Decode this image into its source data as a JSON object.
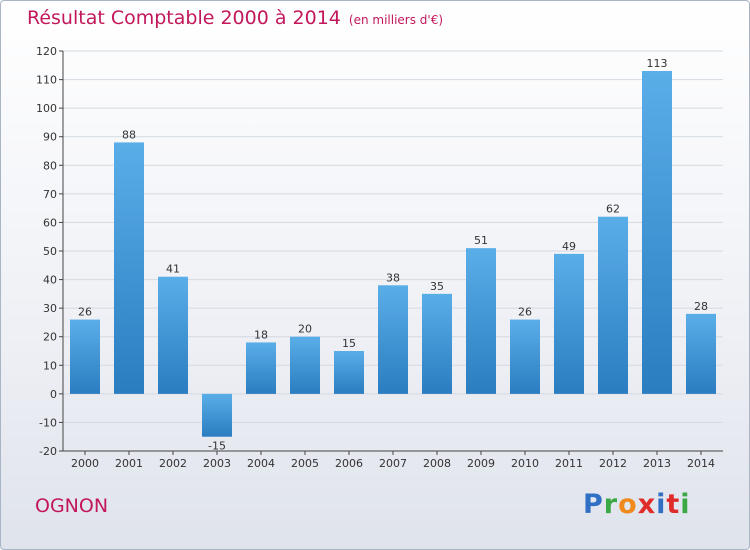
{
  "title": "Résultat Comptable 2000 à 2014",
  "unit": "(en milliers d'€)",
  "commune": "OGNON",
  "logo": {
    "letters": [
      "P",
      "r",
      "o",
      "x",
      "i",
      "t",
      "i"
    ],
    "colors": [
      "#2f6fc4",
      "#39a845",
      "#f08a1d",
      "#e02b2b",
      "#2f6fc4",
      "#e02b2b",
      "#39a845"
    ]
  },
  "colors": {
    "title": "#c2185b",
    "bar_top": "#5aaee8",
    "bar_bottom": "#2a7dc0",
    "axis": "#444444"
  },
  "chart_data": {
    "type": "bar",
    "title": "Résultat Comptable 2000 à 2014",
    "categories": [
      "2000",
      "2001",
      "2002",
      "2003",
      "2004",
      "2005",
      "2006",
      "2007",
      "2008",
      "2009",
      "2010",
      "2011",
      "2012",
      "2013",
      "2014"
    ],
    "values": [
      26,
      88,
      41,
      -15,
      18,
      20,
      15,
      38,
      35,
      51,
      26,
      49,
      62,
      113,
      28
    ],
    "ylim": [
      -20,
      120
    ],
    "yticks": [
      -20,
      -10,
      0,
      10,
      20,
      30,
      40,
      50,
      60,
      70,
      80,
      90,
      100,
      110,
      120
    ],
    "grid": true
  }
}
